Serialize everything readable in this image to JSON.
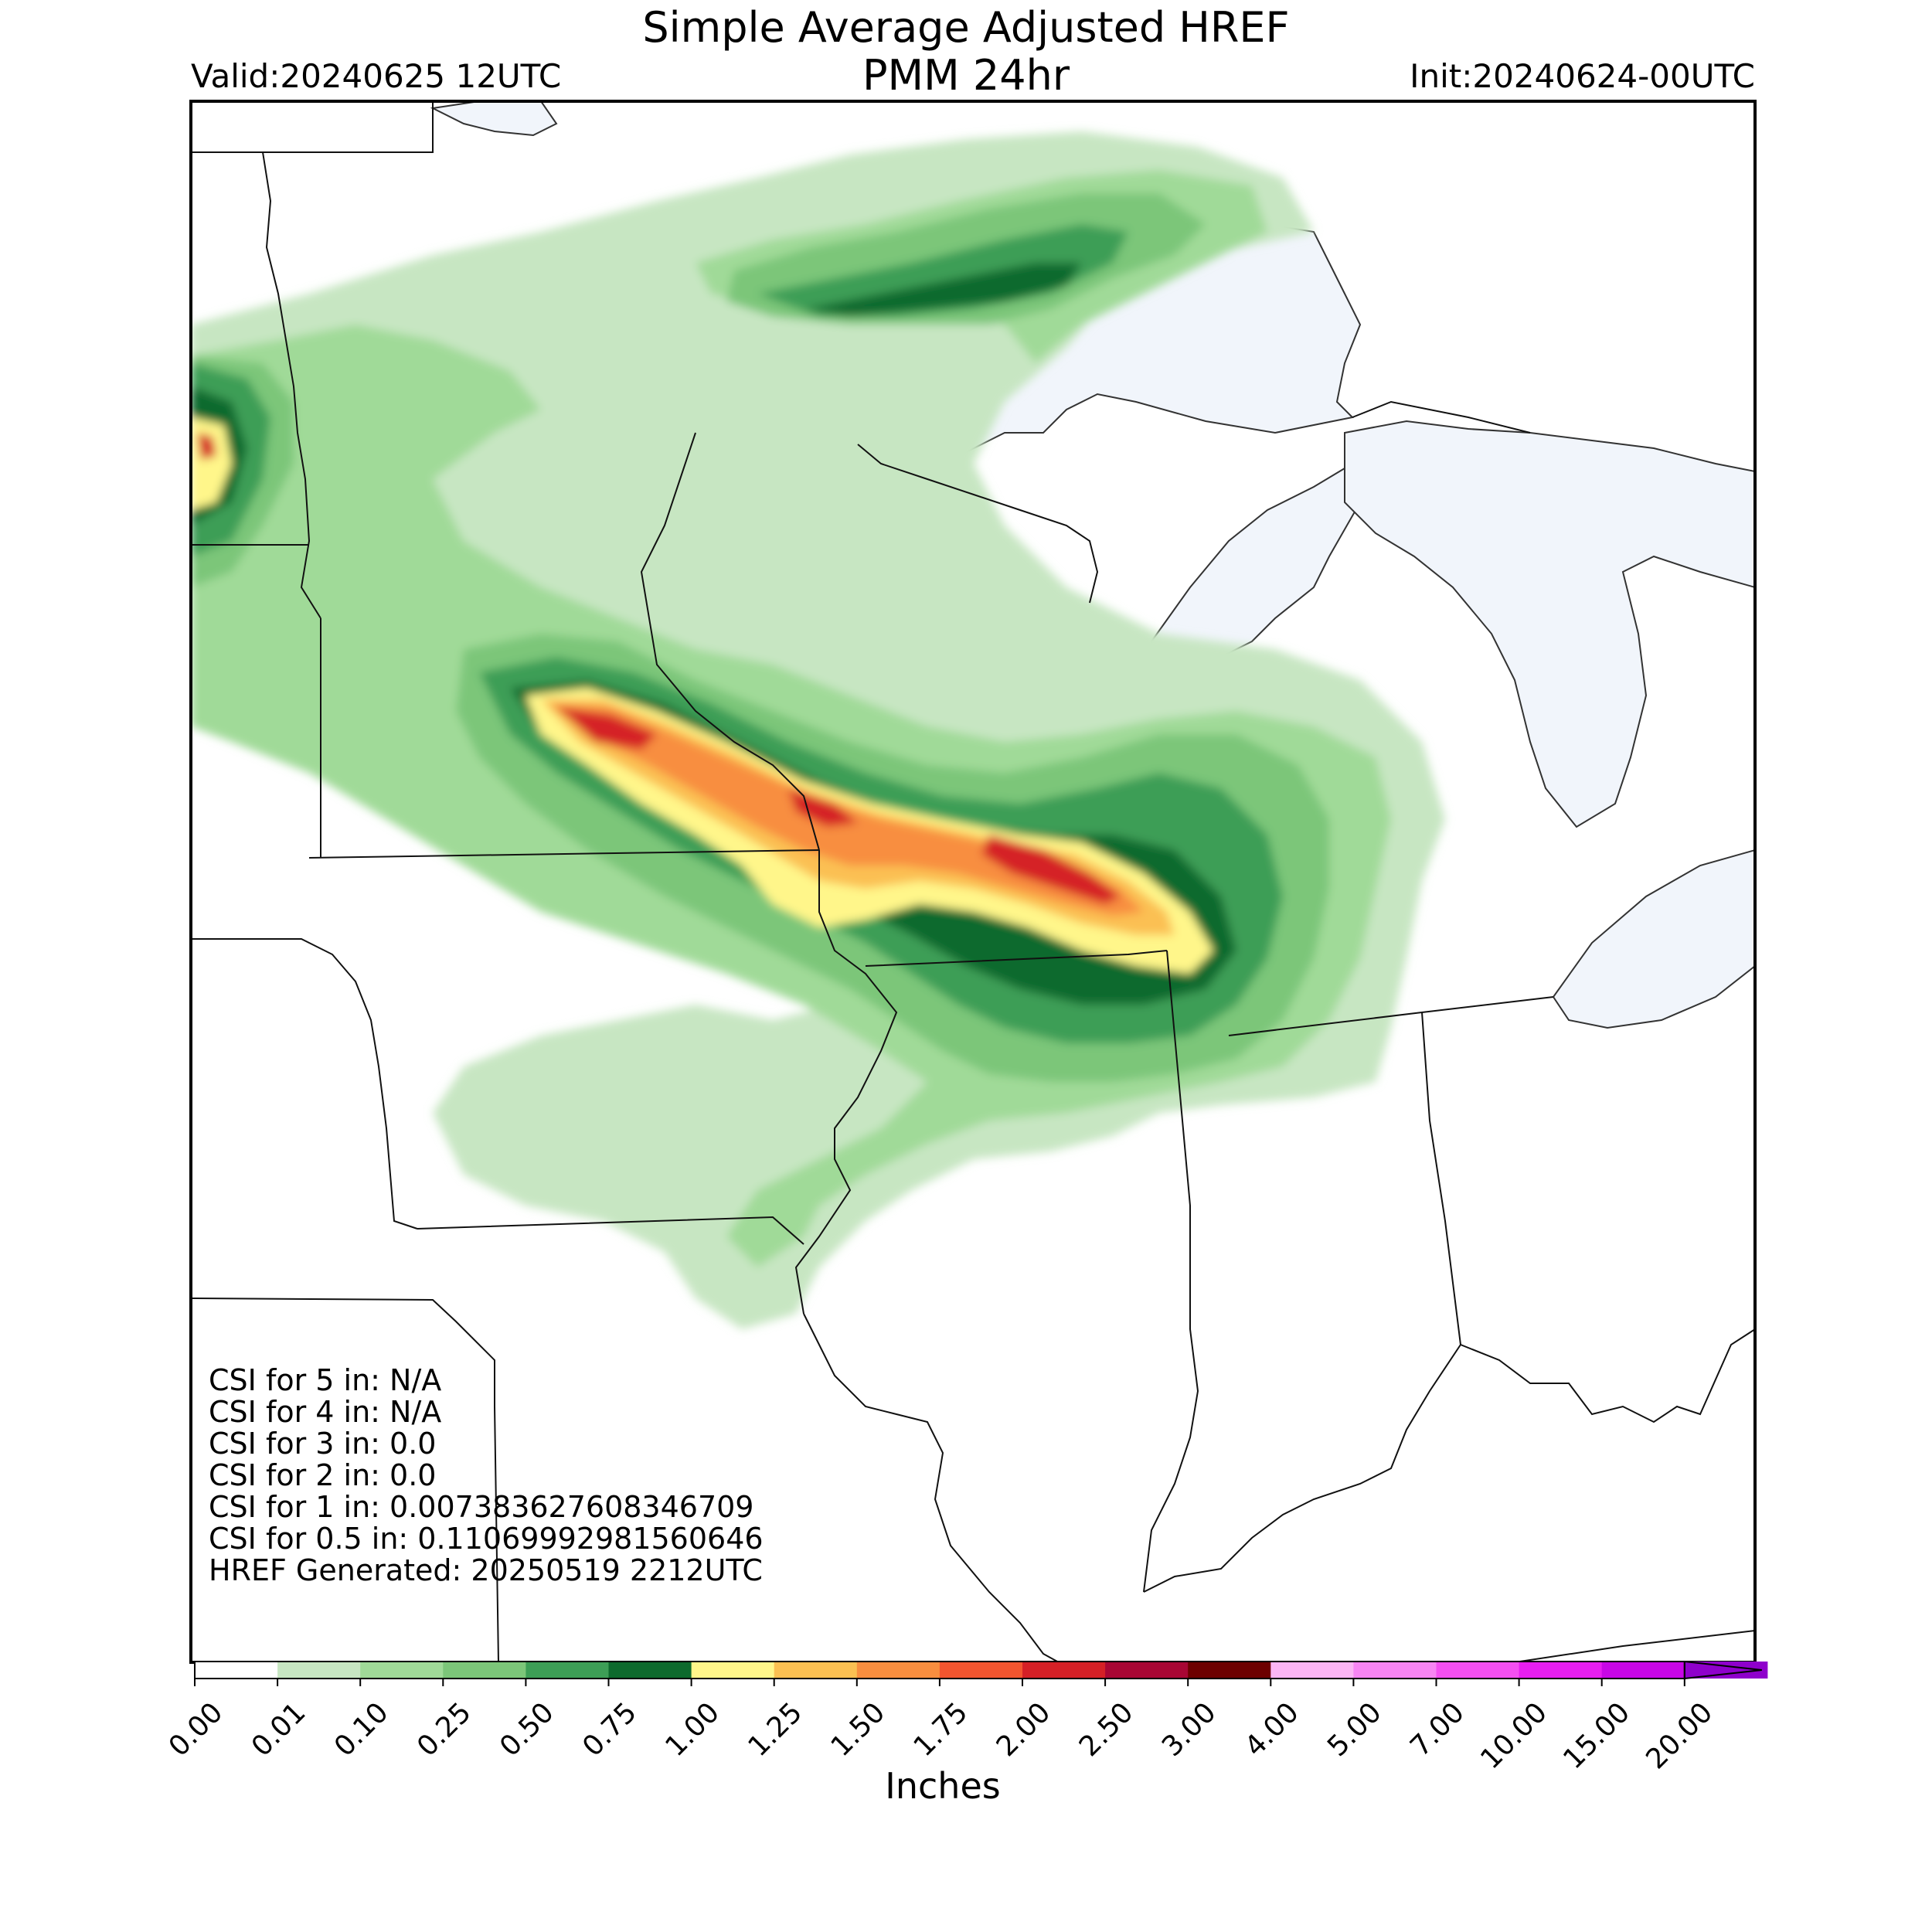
{
  "header": {
    "title_line1": "Simple Average Adjusted HREF",
    "title_line2": "PMM 24hr",
    "valid": "Valid:20240625 12UTC",
    "init": "Init:20240624-00UTC"
  },
  "stats": {
    "lines": [
      "CSI for 5 in: N/A",
      "CSI for 4 in: N/A",
      "CSI for 3 in: 0.0",
      "CSI for 2 in: 0.0",
      "CSI for 1 in: 0.007383627608346709",
      "CSI for 0.5 in: 0.11069992981560646",
      "HREF Generated: 20250519 2212UTC"
    ]
  },
  "colorbar": {
    "label": "Inches",
    "ticks": [
      "0.00",
      "0.01",
      "0.10",
      "0.25",
      "0.50",
      "0.75",
      "1.00",
      "1.25",
      "1.50",
      "1.75",
      "2.00",
      "2.50",
      "3.00",
      "4.00",
      "5.00",
      "7.00",
      "10.00",
      "15.00",
      "20.00"
    ],
    "colors": [
      "#ffffff",
      "#c7e6c2",
      "#a0da98",
      "#7cc679",
      "#3d9e56",
      "#0e6a2d",
      "#fff68a",
      "#fbc052",
      "#f88e3f",
      "#f2552f",
      "#d52026",
      "#a80634",
      "#6d0000",
      "#fbb5f4",
      "#f785f3",
      "#f44ff1",
      "#e71ef0",
      "#c807e6",
      "#8f00cc"
    ]
  },
  "map": {
    "lake_color": "#f1f5fb",
    "state_line_color": "#111111",
    "precip_levels": {
      "0.01": "#c7e6c2",
      "0.10": "#a0da98",
      "0.25": "#7cc679",
      "0.50": "#3d9e56",
      "0.75": "#0e6a2d",
      "1.00": "#fff68a",
      "1.25": "#fbc052",
      "1.50": "#f88e3f",
      "2.00": "#d52026"
    }
  }
}
